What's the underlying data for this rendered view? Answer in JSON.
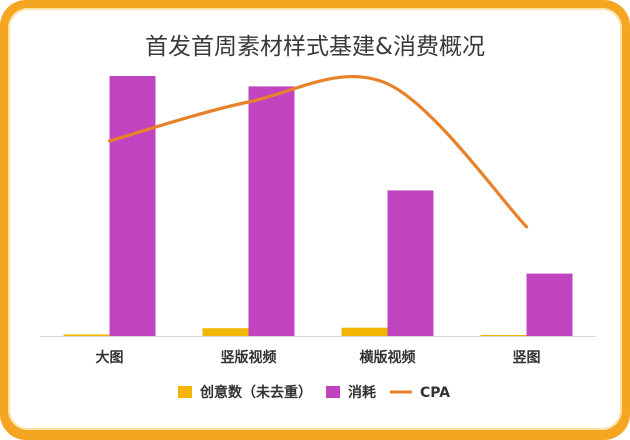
{
  "chart_data": {
    "type": "bar",
    "title": "首发首周素材样式基建&消费概况",
    "xlabel": "",
    "ylabel": "",
    "categories": [
      "大图",
      "竖版视频",
      "横版视频",
      "竖图"
    ],
    "ylim": [
      0,
      100
    ],
    "y2lim": [
      0,
      100
    ],
    "grid": false,
    "legend_position": "bottom",
    "series": [
      {
        "name": "创意数（未去重）",
        "type": "bar",
        "axis": "left",
        "color": "#f2b705",
        "values": [
          0.6,
          3.0,
          3.2,
          0.4
        ]
      },
      {
        "name": "消耗",
        "type": "bar",
        "axis": "left",
        "color": "#c044c0",
        "values": [
          100,
          96,
          56,
          24
        ]
      },
      {
        "name": "CPA",
        "type": "line",
        "axis": "right",
        "color": "#e8822a",
        "smooth": true,
        "values": [
          75,
          90,
          97,
          42
        ]
      }
    ]
  }
}
